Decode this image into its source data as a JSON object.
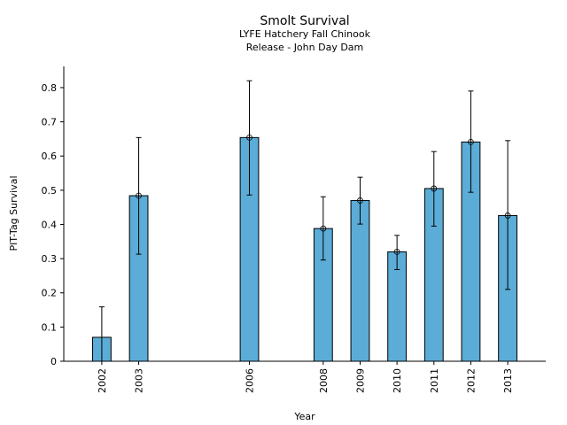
{
  "chart_data": {
    "type": "bar",
    "title": "Smolt Survival",
    "subtitle": [
      "LYFE Hatchery Fall Chinook",
      "Release - John Day Dam"
    ],
    "xlabel": "Year",
    "ylabel": "PIT-Tag Survival",
    "xlim": [
      2000.97,
      2014.03
    ],
    "ylim": [
      0,
      0.862
    ],
    "yticks": [
      0,
      0.1,
      0.2,
      0.3,
      0.4,
      0.5,
      0.6,
      0.7,
      0.8
    ],
    "ytick_labels": [
      "0",
      "0.1",
      "0.2",
      "0.3",
      "0.4",
      "0.5",
      "0.6",
      "0.7",
      "0.8"
    ],
    "categories": [
      "2002",
      "2003",
      "2006",
      "2008",
      "2009",
      "2010",
      "2011",
      "2012",
      "2013"
    ],
    "x": [
      2002,
      2003,
      2006,
      2008,
      2009,
      2010,
      2011,
      2012,
      2013
    ],
    "values": [
      0.07,
      0.484,
      0.654,
      0.388,
      0.47,
      0.32,
      0.505,
      0.641,
      0.426
    ],
    "error_lower": [
      0.0,
      0.313,
      0.486,
      0.296,
      0.401,
      0.268,
      0.395,
      0.494,
      0.21
    ],
    "error_upper": [
      0.159,
      0.654,
      0.82,
      0.481,
      0.538,
      0.368,
      0.613,
      0.79,
      0.645
    ],
    "markers": [
      false,
      true,
      true,
      true,
      true,
      true,
      true,
      true,
      true
    ],
    "bar_width_years": 0.5,
    "grid": false,
    "bar_color": "#5bacd6",
    "edge_color": "#000000"
  }
}
